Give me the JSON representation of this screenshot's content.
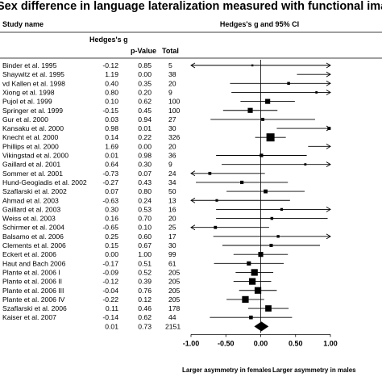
{
  "chart_data": {
    "type": "forest",
    "title": "Sex difference in language lateralization measured with functional imaging",
    "columns": {
      "study": "Study name",
      "hedges_g": "Hedges's g",
      "p_value": "p-Value",
      "total": "Total",
      "plot": "Hedges's g and 95% CI"
    },
    "x_ticks": [
      "-1.00",
      "-0.50",
      "0.00",
      "0.50",
      "1.00"
    ],
    "x_tick_values": [
      -1.0,
      -0.5,
      0.0,
      0.5,
      1.0
    ],
    "xlim": [
      -1.0,
      1.0
    ],
    "x_caption_left": "Larger asymmetry in females",
    "x_caption_right": "Larger asymmetry in males",
    "studies": [
      {
        "name": "Binder et al. 1995",
        "g": "-0.12",
        "p": "0.85",
        "n": "5",
        "lo": -1.0,
        "hi": 1.0,
        "clip_lo": true,
        "clip_hi": true
      },
      {
        "name": "Shaywitz et al. 1995",
        "g": "1.19",
        "p": "0.00",
        "n": "38",
        "lo": 0.52,
        "hi": 1.0,
        "clip_lo": false,
        "clip_hi": true
      },
      {
        "name": "vd Kallen et al. 1998",
        "g": "0.40",
        "p": "0.35",
        "n": "20",
        "lo": -0.44,
        "hi": 1.0,
        "clip_lo": false,
        "clip_hi": true
      },
      {
        "name": "Xiong et al. 1998",
        "g": "0.80",
        "p": "0.20",
        "n": "9",
        "lo": -0.42,
        "hi": 1.0,
        "clip_lo": false,
        "clip_hi": true
      },
      {
        "name": "Pujol et al. 1999",
        "g": "0.10",
        "p": "0.62",
        "n": "100",
        "lo": -0.29,
        "hi": 0.49,
        "clip_lo": false,
        "clip_hi": false
      },
      {
        "name": "Springer et al. 1999",
        "g": "-0.15",
        "p": "0.45",
        "n": "100",
        "lo": -0.54,
        "hi": 0.24,
        "clip_lo": false,
        "clip_hi": false
      },
      {
        "name": "Gur et al. 2000",
        "g": "0.03",
        "p": "0.94",
        "n": "27",
        "lo": -0.72,
        "hi": 0.78,
        "clip_lo": false,
        "clip_hi": false
      },
      {
        "name": "Kansaku et al. 2000",
        "g": "0.98",
        "p": "0.01",
        "n": "30",
        "lo": 0.23,
        "hi": 1.0,
        "clip_lo": false,
        "clip_hi": true
      },
      {
        "name": "Knecht et al. 2000",
        "g": "0.14",
        "p": "0.22",
        "n": "326",
        "lo": -0.08,
        "hi": 0.36,
        "clip_lo": false,
        "clip_hi": false
      },
      {
        "name": "Phillips et al. 2000",
        "g": "1.69",
        "p": "0.00",
        "n": "20",
        "lo": 0.68,
        "hi": 1.0,
        "clip_lo": false,
        "clip_hi": true
      },
      {
        "name": "Vikingstad et al. 2000",
        "g": "0.01",
        "p": "0.98",
        "n": "36",
        "lo": -0.64,
        "hi": 0.66,
        "clip_lo": false,
        "clip_hi": false
      },
      {
        "name": "Gaillard et al. 2001",
        "g": "0.64",
        "p": "0.30",
        "n": "9",
        "lo": -0.56,
        "hi": 1.0,
        "clip_lo": false,
        "clip_hi": true
      },
      {
        "name": "Sommer et al. 2001",
        "g": "-0.73",
        "p": "0.07",
        "n": "24",
        "lo": -1.0,
        "hi": 0.06,
        "clip_lo": true,
        "clip_hi": false
      },
      {
        "name": "Hund-Geogiadis et al. 2002",
        "g": "-0.27",
        "p": "0.43",
        "n": "34",
        "lo": -0.93,
        "hi": 0.39,
        "clip_lo": false,
        "clip_hi": false
      },
      {
        "name": "Szaflarski et al. 2002",
        "g": "0.07",
        "p": "0.80",
        "n": "50",
        "lo": -0.49,
        "hi": 0.63,
        "clip_lo": false,
        "clip_hi": false
      },
      {
        "name": "Ahmad et al. 2003",
        "g": "-0.63",
        "p": "0.24",
        "n": "13",
        "lo": -1.0,
        "hi": 0.42,
        "clip_lo": true,
        "clip_hi": false
      },
      {
        "name": "Gaillard et al. 2003",
        "g": "0.30",
        "p": "0.53",
        "n": "16",
        "lo": -0.64,
        "hi": 1.0,
        "clip_lo": false,
        "clip_hi": true
      },
      {
        "name": "Weiss et al. 2003",
        "g": "0.16",
        "p": "0.70",
        "n": "20",
        "lo": -0.64,
        "hi": 0.96,
        "clip_lo": false,
        "clip_hi": false
      },
      {
        "name": "Schirmer et al. 2004",
        "g": "-0.65",
        "p": "0.10",
        "n": "25",
        "lo": -1.0,
        "hi": 0.12,
        "clip_lo": true,
        "clip_hi": false
      },
      {
        "name": "Balsamo et al. 2006",
        "g": "0.25",
        "p": "0.60",
        "n": "17",
        "lo": -0.68,
        "hi": 1.0,
        "clip_lo": false,
        "clip_hi": true
      },
      {
        "name": "Clements et al. 2006",
        "g": "0.15",
        "p": "0.67",
        "n": "30",
        "lo": -0.55,
        "hi": 0.85,
        "clip_lo": false,
        "clip_hi": false
      },
      {
        "name": "Eckert et al. 2006",
        "g": "0.00",
        "p": "1.00",
        "n": "99",
        "lo": -0.39,
        "hi": 0.39,
        "clip_lo": false,
        "clip_hi": false
      },
      {
        "name": "Haut and Bach 2006",
        "g": "-0.17",
        "p": "0.51",
        "n": "61",
        "lo": -0.67,
        "hi": 0.33,
        "clip_lo": false,
        "clip_hi": false
      },
      {
        "name": "Plante et al. 2006 I",
        "g": "-0.09",
        "p": "0.52",
        "n": "205",
        "lo": -0.36,
        "hi": 0.18,
        "clip_lo": false,
        "clip_hi": false
      },
      {
        "name": "Plante et al. 2006 II",
        "g": "-0.12",
        "p": "0.39",
        "n": "205",
        "lo": -0.39,
        "hi": 0.15,
        "clip_lo": false,
        "clip_hi": false
      },
      {
        "name": "Plante et al. 2006 III",
        "g": "-0.04",
        "p": "0.76",
        "n": "205",
        "lo": -0.31,
        "hi": 0.23,
        "clip_lo": false,
        "clip_hi": false
      },
      {
        "name": "Plante et al. 2006 IV",
        "g": "-0.22",
        "p": "0.12",
        "n": "205",
        "lo": -0.49,
        "hi": 0.05,
        "clip_lo": false,
        "clip_hi": false
      },
      {
        "name": "Szaflarski et al. 2006",
        "g": "0.11",
        "p": "0.46",
        "n": "178",
        "lo": -0.18,
        "hi": 0.4,
        "clip_lo": false,
        "clip_hi": false
      },
      {
        "name": "Kaiser et al. 2007",
        "g": "-0.14",
        "p": "0.62",
        "n": "44",
        "lo": -0.73,
        "hi": 0.45,
        "clip_lo": false,
        "clip_hi": false
      }
    ],
    "summary": {
      "g": "0.01",
      "p": "0.73",
      "n": "2151",
      "lo": -0.07,
      "hi": 0.09
    }
  }
}
